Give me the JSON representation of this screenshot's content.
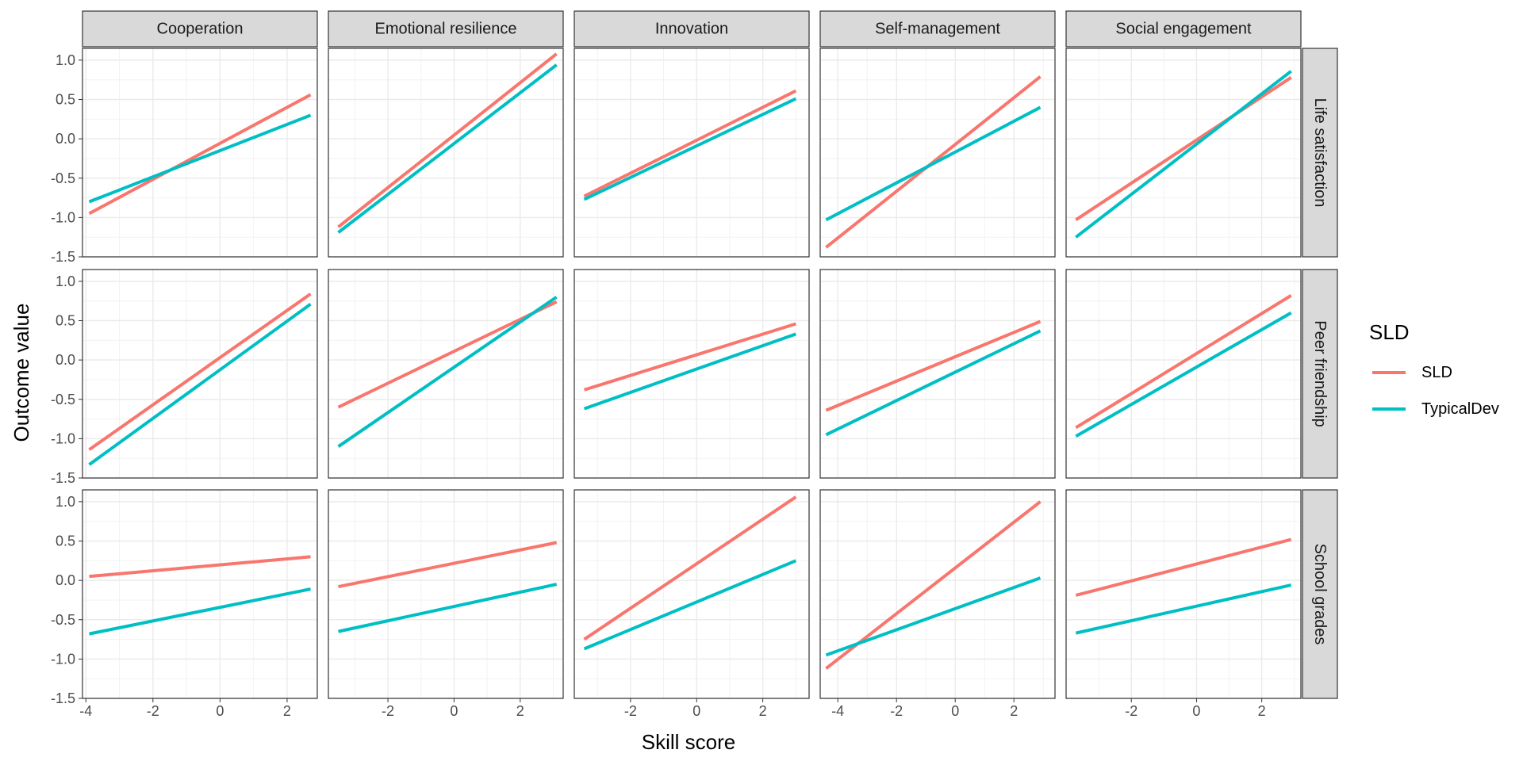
{
  "chart_data": {
    "type": "line",
    "xlabel": "Skill score",
    "ylabel": "Outcome value",
    "ylim": [
      -1.5,
      1.15
    ],
    "y_ticks": [
      "1.0",
      "0.5",
      "0.0",
      "-0.5",
      "-1.0",
      "-1.5"
    ],
    "y_tick_values": [
      1.0,
      0.5,
      0.0,
      -0.5,
      -1.0,
      -1.5
    ],
    "grid": true,
    "legend": {
      "title": "SLD",
      "position": "right"
    },
    "colors": {
      "SLD": "#F8766D",
      "TypicalDev": "#00BFC4"
    },
    "columns": [
      {
        "name": "Cooperation",
        "xlim": [
          -4.1,
          2.9
        ],
        "x_ticks": [
          -4,
          -2,
          0,
          2
        ],
        "x_tick_labels": [
          "-4",
          "-2",
          "0",
          "2"
        ]
      },
      {
        "name": "Emotional resilience",
        "xlim": [
          -3.8,
          3.3
        ],
        "x_ticks": [
          -2,
          0,
          2
        ],
        "x_tick_labels": [
          "-2",
          "0",
          "2"
        ]
      },
      {
        "name": "Innovation",
        "xlim": [
          -3.7,
          3.4
        ],
        "x_ticks": [
          -2,
          0,
          2
        ],
        "x_tick_labels": [
          "-2",
          "0",
          "2"
        ]
      },
      {
        "name": "Self-management",
        "xlim": [
          -4.6,
          3.4
        ],
        "x_ticks": [
          -4,
          -2,
          0,
          2
        ],
        "x_tick_labels": [
          "-4",
          "-2",
          "0",
          "2"
        ]
      },
      {
        "name": "Social engagement",
        "xlim": [
          -4.0,
          3.2
        ],
        "x_ticks": [
          -2,
          0,
          2
        ],
        "x_tick_labels": [
          "-2",
          "0",
          "2"
        ]
      }
    ],
    "rows": [
      "Life satisfaction",
      "Peer friendship",
      "School grades"
    ],
    "series": [
      {
        "name": "SLD",
        "panels": [
          [
            {
              "x": [
                -3.9,
                2.7
              ],
              "y": [
                -0.95,
                0.56
              ]
            },
            {
              "x": [
                -3.5,
                3.1
              ],
              "y": [
                -1.12,
                1.08
              ]
            },
            {
              "x": [
                -3.4,
                3.0
              ],
              "y": [
                -0.73,
                0.61
              ]
            },
            {
              "x": [
                -4.4,
                2.9
              ],
              "y": [
                -1.38,
                0.79
              ]
            },
            {
              "x": [
                -3.7,
                2.9
              ],
              "y": [
                -1.03,
                0.78
              ]
            }
          ],
          [
            {
              "x": [
                -3.9,
                2.7
              ],
              "y": [
                -1.14,
                0.84
              ]
            },
            {
              "x": [
                -3.5,
                3.1
              ],
              "y": [
                -0.6,
                0.74
              ]
            },
            {
              "x": [
                -3.4,
                3.0
              ],
              "y": [
                -0.38,
                0.46
              ]
            },
            {
              "x": [
                -4.4,
                2.9
              ],
              "y": [
                -0.64,
                0.49
              ]
            },
            {
              "x": [
                -3.7,
                2.9
              ],
              "y": [
                -0.86,
                0.82
              ]
            }
          ],
          [
            {
              "x": [
                -3.9,
                2.7
              ],
              "y": [
                0.05,
                0.3
              ]
            },
            {
              "x": [
                -3.5,
                3.1
              ],
              "y": [
                -0.08,
                0.48
              ]
            },
            {
              "x": [
                -3.4,
                3.0
              ],
              "y": [
                -0.75,
                1.06
              ]
            },
            {
              "x": [
                -4.4,
                2.9
              ],
              "y": [
                -1.12,
                1.0
              ]
            },
            {
              "x": [
                -3.7,
                2.9
              ],
              "y": [
                -0.19,
                0.52
              ]
            }
          ]
        ]
      },
      {
        "name": "TypicalDev",
        "panels": [
          [
            {
              "x": [
                -3.9,
                2.7
              ],
              "y": [
                -0.8,
                0.3
              ]
            },
            {
              "x": [
                -3.5,
                3.1
              ],
              "y": [
                -1.19,
                0.94
              ]
            },
            {
              "x": [
                -3.4,
                3.0
              ],
              "y": [
                -0.77,
                0.51
              ]
            },
            {
              "x": [
                -4.4,
                2.9
              ],
              "y": [
                -1.03,
                0.4
              ]
            },
            {
              "x": [
                -3.7,
                2.9
              ],
              "y": [
                -1.25,
                0.86
              ]
            }
          ],
          [
            {
              "x": [
                -3.9,
                2.7
              ],
              "y": [
                -1.33,
                0.71
              ]
            },
            {
              "x": [
                -3.5,
                3.1
              ],
              "y": [
                -1.1,
                0.8
              ]
            },
            {
              "x": [
                -3.4,
                3.0
              ],
              "y": [
                -0.62,
                0.33
              ]
            },
            {
              "x": [
                -4.4,
                2.9
              ],
              "y": [
                -0.95,
                0.37
              ]
            },
            {
              "x": [
                -3.7,
                2.9
              ],
              "y": [
                -0.97,
                0.6
              ]
            }
          ],
          [
            {
              "x": [
                -3.9,
                2.7
              ],
              "y": [
                -0.68,
                -0.11
              ]
            },
            {
              "x": [
                -3.5,
                3.1
              ],
              "y": [
                -0.65,
                -0.05
              ]
            },
            {
              "x": [
                -3.4,
                3.0
              ],
              "y": [
                -0.87,
                0.25
              ]
            },
            {
              "x": [
                -4.4,
                2.9
              ],
              "y": [
                -0.95,
                0.03
              ]
            },
            {
              "x": [
                -3.7,
                2.9
              ],
              "y": [
                -0.67,
                -0.06
              ]
            }
          ]
        ]
      }
    ]
  }
}
